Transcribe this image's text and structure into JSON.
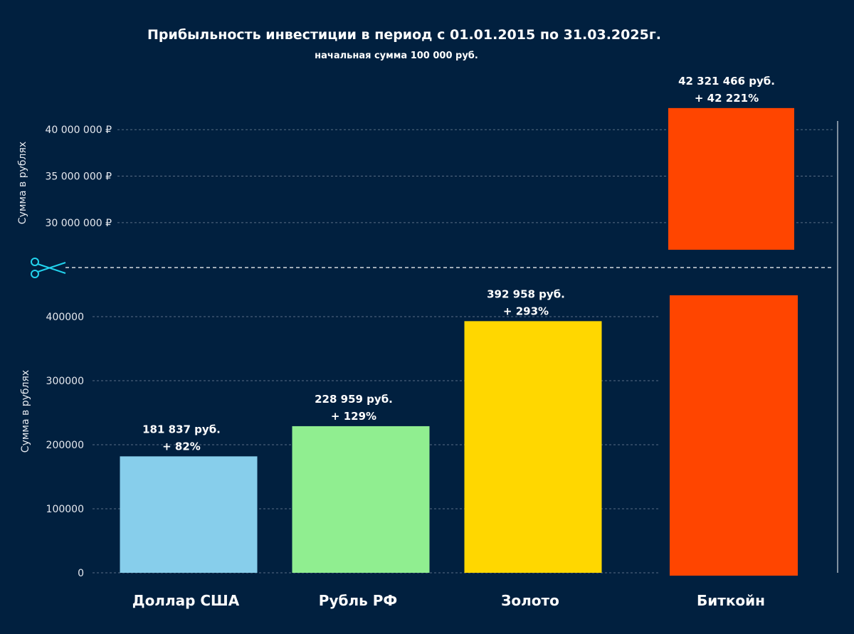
{
  "chart_data": {
    "type": "bar",
    "title": "Прибыльность инвестиции в период с 01.01.2015 по 31.03.2025г.",
    "subtitle": "начальная сумма 100 000 руб.",
    "ylabel": "Сумма в рублях",
    "categories": [
      "Доллар США",
      "Рубль РФ",
      "Золото",
      "Биткойн"
    ],
    "values": [
      181837,
      228959,
      392958,
      42321466
    ],
    "colors": [
      "#87ceeb",
      "#90ee90",
      "#ffd700",
      "#ff4500"
    ],
    "data_labels": [
      [
        "181 837 руб.",
        "+ 82%"
      ],
      [
        "228 959 руб.",
        "+ 129%"
      ],
      [
        "392 958 руб.",
        "+ 293%"
      ],
      [
        "42 321 466 руб.",
        "+ 42 221%"
      ]
    ],
    "broken_axis": {
      "lower": {
        "ylim": [
          0,
          430000
        ],
        "ticks": [
          0,
          100000,
          200000,
          300000,
          400000
        ],
        "tick_labels": [
          "0",
          "100000",
          "200000",
          "300000",
          "400000"
        ]
      },
      "upper": {
        "ylim": [
          27000000,
          43000000
        ],
        "ticks": [
          30000000,
          35000000,
          40000000
        ],
        "tick_labels": [
          "30 000 000 ₽",
          "35 000 000 ₽",
          "40 000 000 ₽"
        ]
      }
    },
    "grid": true,
    "legend": "none",
    "break_marker": "scissors-icon"
  }
}
